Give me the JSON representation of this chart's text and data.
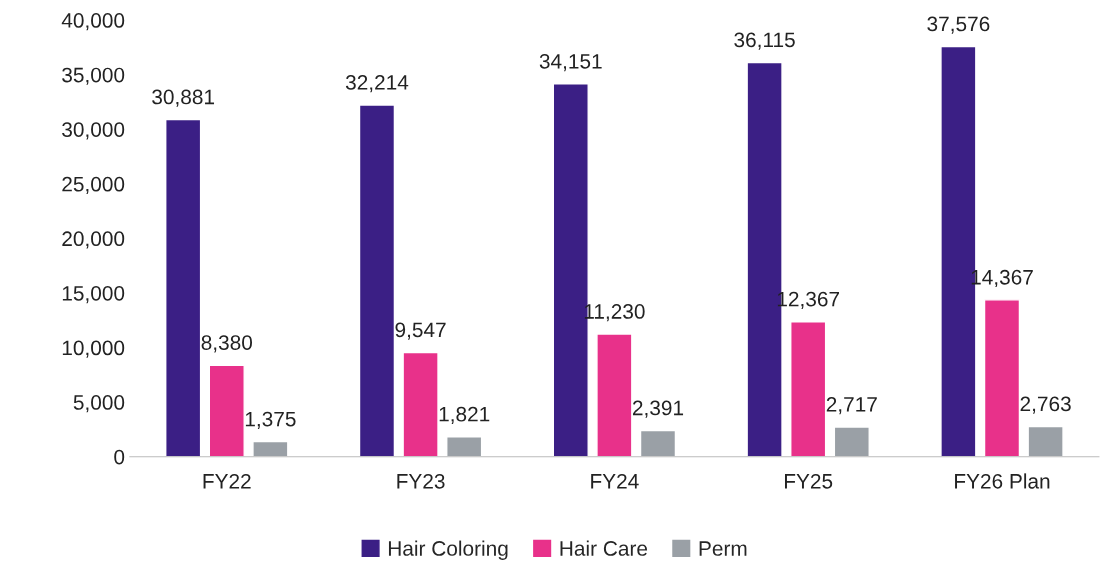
{
  "chart_data": {
    "type": "bar",
    "categories": [
      "FY22",
      "FY23",
      "FY24",
      "FY25",
      "FY26 Plan"
    ],
    "series": [
      {
        "name": "Hair Coloring",
        "color": "#3b1f85",
        "values": [
          30881,
          32214,
          34151,
          36115,
          37576
        ],
        "value_labels": [
          "30,881",
          "32,214",
          "34,151",
          "36,115",
          "37,576"
        ]
      },
      {
        "name": "Hair Care",
        "color": "#e8318a",
        "values": [
          8380,
          9547,
          11230,
          12367,
          14367
        ],
        "value_labels": [
          "8,380",
          "9,547",
          "11,230",
          "12,367",
          "14,367"
        ]
      },
      {
        "name": "Perm",
        "color": "#9aa0a6",
        "values": [
          1375,
          1821,
          2391,
          2717,
          2763
        ],
        "value_labels": [
          "1,375",
          "1,821",
          "2,391",
          "2,717",
          "2,763"
        ]
      }
    ],
    "ylim": [
      0,
      40000
    ],
    "yticks": [
      0,
      {
        "value": 5000,
        "label": "5,000"
      },
      {
        "value": 10000,
        "label": "10,000"
      },
      {
        "value": 15000,
        "label": "15,000"
      },
      {
        "value": 20000,
        "label": "20,000"
      },
      {
        "value": 25000,
        "label": "25,000"
      },
      {
        "value": 30000,
        "label": "30,000"
      },
      {
        "value": 35000,
        "label": "35,000"
      },
      {
        "value": 40000,
        "label": "40,000"
      }
    ],
    "grid": false,
    "legend": "bottom"
  }
}
